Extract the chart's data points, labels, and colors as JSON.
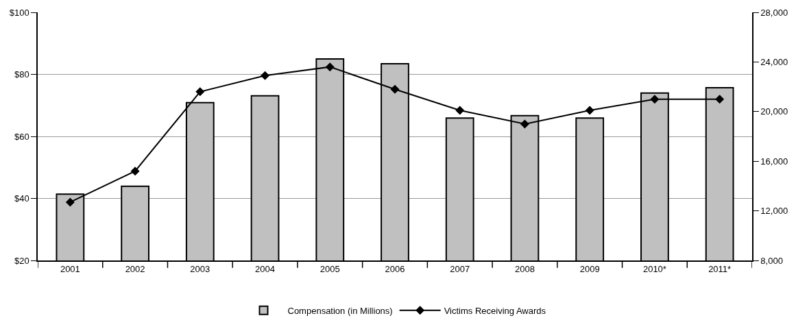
{
  "chart_data": {
    "type": "bar",
    "categories": [
      "2001",
      "2002",
      "2003",
      "2004",
      "2005",
      "2006",
      "2007",
      "2008",
      "2009",
      "2010*",
      "2011*"
    ],
    "series": [
      {
        "name": "Compensation (in Millions)",
        "color": "#c0c0c0",
        "values": [
          41.4,
          43.9,
          70.9,
          73.1,
          85.0,
          83.4,
          65.9,
          66.7,
          65.9,
          74.0,
          75.7
        ]
      },
      {
        "name": "Victims Receiving Awards",
        "type": "line",
        "axis": "y2",
        "color": "#000000",
        "marker": "diamond",
        "values": [
          12700,
          15200,
          21600,
          22900,
          23600,
          21800,
          20100,
          19000,
          20100,
          21000,
          21000
        ]
      }
    ],
    "ylim": [
      20,
      100
    ],
    "yticks": [
      {
        "value": 20,
        "label": "$20"
      },
      {
        "value": 40,
        "label": "$40"
      },
      {
        "value": 60,
        "label": "$60"
      },
      {
        "value": 80,
        "label": "$80"
      },
      {
        "value": 100,
        "label": "$100"
      }
    ],
    "y2lim": [
      8000,
      28000
    ],
    "y2ticks": [
      {
        "value": 8000,
        "label": "8,000"
      },
      {
        "value": 12000,
        "label": "12,000"
      },
      {
        "value": 16000,
        "label": "16,000"
      },
      {
        "value": 20000,
        "label": "20,000"
      },
      {
        "value": 24000,
        "label": "24,000"
      },
      {
        "value": 28000,
        "label": "28,000"
      }
    ],
    "grid": "y",
    "legend": "bottom"
  }
}
